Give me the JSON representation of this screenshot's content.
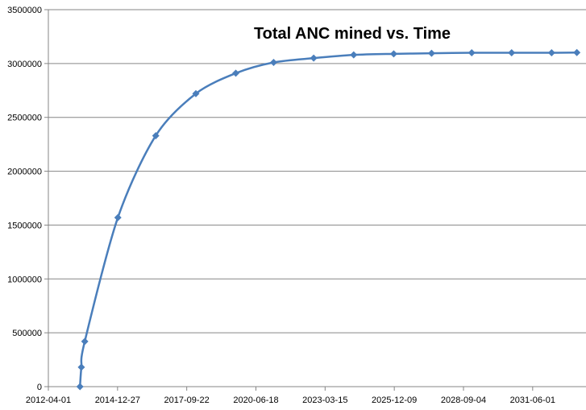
{
  "chart_data": {
    "type": "line",
    "title": "Total ANC mined vs. Time",
    "xlabel": "",
    "ylabel": "",
    "x_ticks": [
      "2012-04-01",
      "2014-12-27",
      "2017-09-22",
      "2020-06-18",
      "2023-03-15",
      "2025-12-09",
      "2028-09-04",
      "2031-06-01"
    ],
    "y_ticks": [
      "0",
      "500000",
      "1000000",
      "1500000",
      "2000000",
      "2500000",
      "3000000",
      "3500000"
    ],
    "xlim": [
      "2012-04-01",
      "2033-07-11"
    ],
    "ylim": [
      0,
      3500000
    ],
    "grid": "horizontal",
    "legend": "none",
    "series": [
      {
        "color": "#4a7ebb",
        "marker": "diamond",
        "points": [
          {
            "x": "2013-07-02",
            "y": 0
          },
          {
            "x": "2013-07-22",
            "y": 180000
          },
          {
            "x": "2013-09-09",
            "y": 420000
          },
          {
            "x": "2015-01-01",
            "y": 1570000
          },
          {
            "x": "2016-07-01",
            "y": 2330000
          },
          {
            "x": "2018-02-01",
            "y": 2720000
          },
          {
            "x": "2019-09-01",
            "y": 2910000
          },
          {
            "x": "2021-03-01",
            "y": 3010000
          },
          {
            "x": "2022-10-01",
            "y": 3050000
          },
          {
            "x": "2024-05-01",
            "y": 3080000
          },
          {
            "x": "2025-12-01",
            "y": 3090000
          },
          {
            "x": "2027-06-01",
            "y": 3095000
          },
          {
            "x": "2029-01-01",
            "y": 3100000
          },
          {
            "x": "2030-08-01",
            "y": 3100000
          },
          {
            "x": "2032-03-01",
            "y": 3100000
          },
          {
            "x": "2033-03-01",
            "y": 3102000
          }
        ]
      }
    ]
  }
}
